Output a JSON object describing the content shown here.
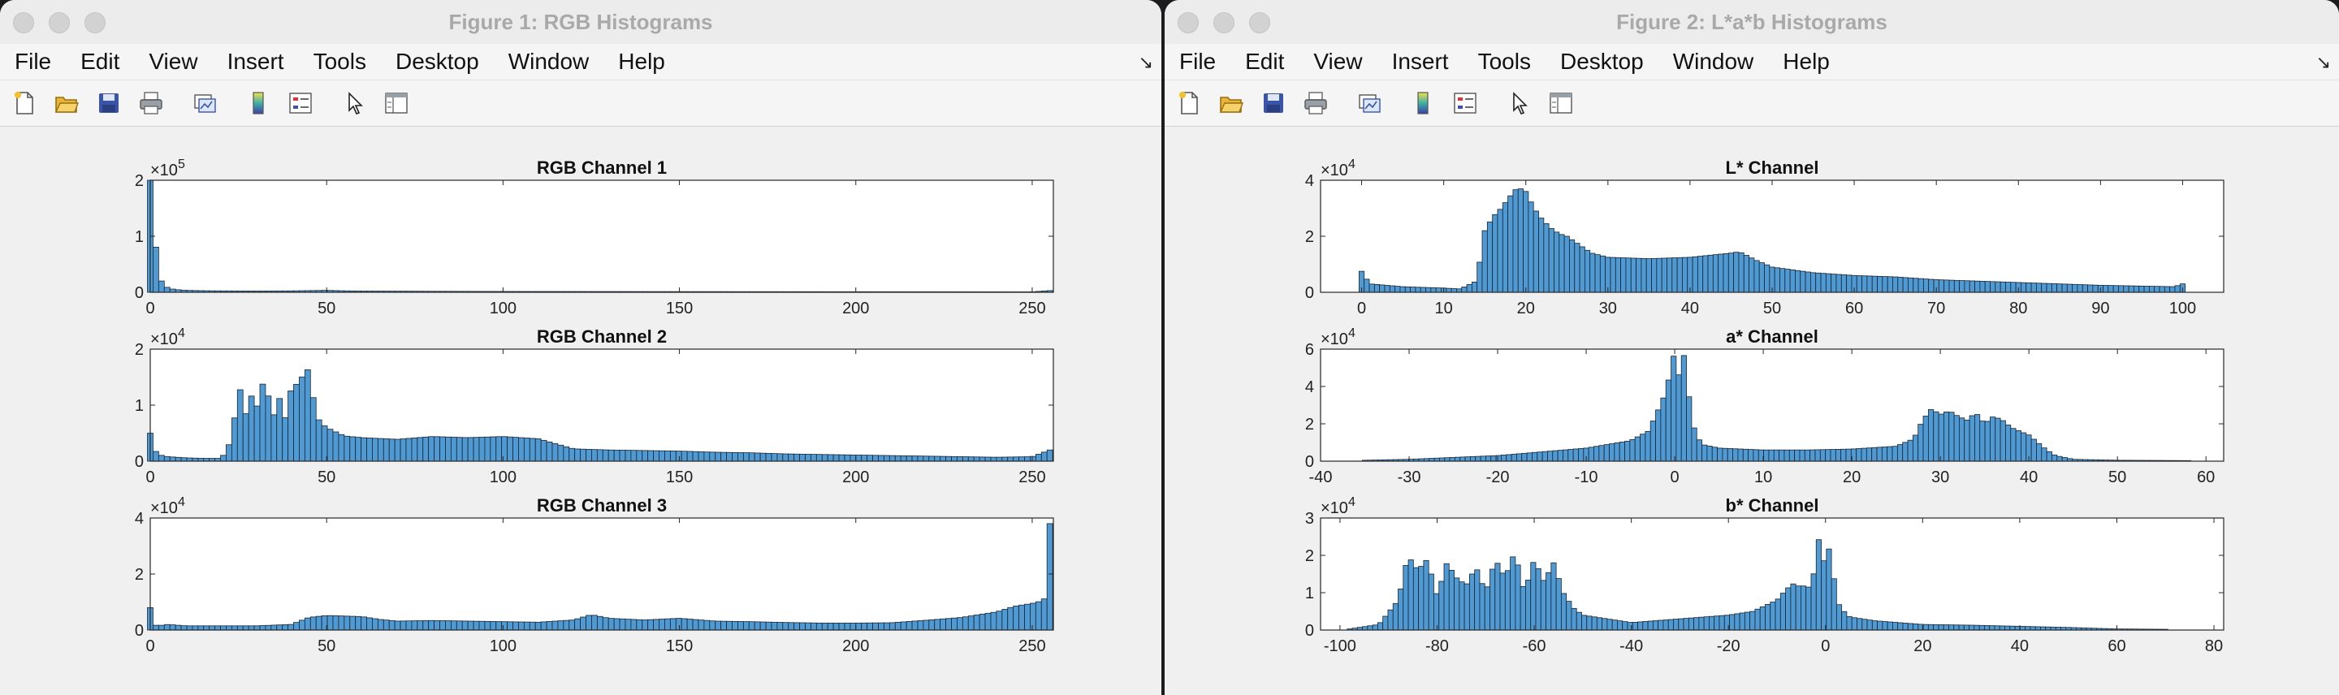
{
  "windows": [
    {
      "title": "Figure 1: RGB Histograms",
      "menu": [
        "File",
        "Edit",
        "View",
        "Insert",
        "Tools",
        "Desktop",
        "Window",
        "Help"
      ],
      "toolbar": [
        "new-figure-icon",
        "open-file-icon",
        "save-icon",
        "print-icon",
        "link-plot-icon",
        "colorbar-icon",
        "legend-icon",
        "pointer-icon",
        "property-inspector-icon"
      ],
      "chart_data": [
        {
          "type": "bar",
          "title": "RGB Channel 1",
          "xlim": [
            0,
            256
          ],
          "xticks": [
            0,
            50,
            100,
            150,
            200,
            250
          ],
          "ylim": [
            0,
            200000
          ],
          "yticks": [
            0,
            1,
            2
          ],
          "exponent": "5",
          "x": [
            0,
            1,
            2,
            3,
            4,
            5,
            6,
            8,
            10,
            15,
            20,
            30,
            40,
            45,
            50,
            55,
            60,
            80,
            100,
            150,
            200,
            250,
            255
          ],
          "y": [
            200000,
            118000,
            55000,
            22000,
            12000,
            8000,
            6000,
            4500,
            3500,
            2800,
            2500,
            2200,
            2500,
            3000,
            3500,
            2600,
            2200,
            1800,
            1500,
            1200,
            1000,
            800,
            3000
          ],
          "color": "#4f9ad2"
        },
        {
          "type": "bar",
          "title": "RGB Channel 2",
          "xlim": [
            0,
            256
          ],
          "xticks": [
            0,
            50,
            100,
            150,
            200,
            250
          ],
          "ylim": [
            0,
            20000
          ],
          "yticks": [
            0,
            1,
            2
          ],
          "exponent": "4",
          "x": [
            0,
            1,
            2,
            5,
            10,
            15,
            20,
            22,
            24,
            25,
            26,
            27,
            28,
            30,
            31,
            32,
            33,
            34,
            35,
            36,
            37,
            38,
            40,
            42,
            44,
            45,
            46,
            47,
            48,
            50,
            55,
            60,
            70,
            80,
            90,
            100,
            110,
            120,
            130,
            140,
            150,
            160,
            170,
            180,
            190,
            200,
            210,
            220,
            230,
            240,
            250,
            255
          ],
          "y": [
            5000,
            2500,
            1200,
            800,
            600,
            500,
            500,
            2000,
            8000,
            14500,
            11000,
            8000,
            13000,
            9000,
            12000,
            14000,
            10000,
            13500,
            8000,
            12500,
            10500,
            7000,
            13000,
            14000,
            16000,
            16500,
            12000,
            9000,
            7000,
            6000,
            4500,
            4200,
            3900,
            4400,
            4200,
            4400,
            4000,
            2200,
            2000,
            1900,
            1800,
            1600,
            1500,
            1300,
            1200,
            1100,
            1000,
            900,
            800,
            700,
            800,
            2000
          ],
          "color": "#4f9ad2"
        },
        {
          "type": "bar",
          "title": "RGB Channel 3",
          "xlim": [
            0,
            256
          ],
          "xticks": [
            0,
            50,
            100,
            150,
            200,
            250
          ],
          "ylim": [
            0,
            40000
          ],
          "yticks": [
            0,
            2,
            4
          ],
          "exponent": "4",
          "x": [
            0,
            1,
            2,
            5,
            10,
            20,
            30,
            40,
            45,
            50,
            55,
            60,
            65,
            70,
            80,
            90,
            100,
            110,
            120,
            125,
            130,
            140,
            150,
            160,
            170,
            180,
            190,
            200,
            210,
            220,
            230,
            240,
            245,
            250,
            253,
            254,
            255
          ],
          "y": [
            8000,
            2000,
            1500,
            2000,
            1500,
            1500,
            1500,
            2000,
            4500,
            5200,
            5000,
            4800,
            3800,
            3200,
            3400,
            3200,
            3000,
            2800,
            3600,
            5500,
            4200,
            3600,
            4200,
            3200,
            3000,
            2700,
            2500,
            2500,
            2600,
            3500,
            4500,
            6500,
            8500,
            9500,
            10500,
            12000,
            38000
          ],
          "color": "#4f9ad2"
        }
      ]
    },
    {
      "title": "Figure 2: L*a*b Histograms",
      "menu": [
        "File",
        "Edit",
        "View",
        "Insert",
        "Tools",
        "Desktop",
        "Window",
        "Help"
      ],
      "toolbar": [
        "new-figure-icon",
        "open-file-icon",
        "save-icon",
        "print-icon",
        "link-plot-icon",
        "colorbar-icon",
        "legend-icon",
        "pointer-icon",
        "property-inspector-icon"
      ],
      "chart_data": [
        {
          "type": "bar",
          "title": "L* Channel",
          "xlim": [
            -5,
            105
          ],
          "xticks": [
            0,
            10,
            20,
            30,
            40,
            50,
            60,
            70,
            80,
            90,
            100
          ],
          "ylim": [
            0,
            40000
          ],
          "yticks": [
            0,
            2,
            4
          ],
          "exponent": "4",
          "x": [
            0,
            1,
            5,
            10,
            12,
            14,
            15,
            16,
            17,
            18,
            19,
            20,
            21,
            22,
            23,
            24,
            25,
            26,
            27,
            28,
            30,
            35,
            40,
            45,
            46,
            47,
            48,
            50,
            55,
            60,
            65,
            70,
            80,
            90,
            99,
            100
          ],
          "y": [
            7500,
            3000,
            2000,
            1500,
            1200,
            4000,
            22000,
            27000,
            30000,
            34000,
            37500,
            36000,
            30000,
            26000,
            23000,
            21000,
            20000,
            18000,
            16000,
            14000,
            12500,
            12000,
            12500,
            14000,
            14500,
            13000,
            11500,
            9000,
            7000,
            6000,
            5500,
            4500,
            3500,
            2500,
            2000,
            3000
          ],
          "color": "#4f9ad2"
        },
        {
          "type": "bar",
          "title": "a* Channel",
          "xlim": [
            -40,
            62
          ],
          "xticks": [
            -40,
            -30,
            -20,
            -10,
            0,
            10,
            20,
            30,
            40,
            50,
            60
          ],
          "ylim": [
            0,
            60000
          ],
          "yticks": [
            0,
            2,
            4,
            6
          ],
          "exponent": "4",
          "x": [
            -35,
            -30,
            -20,
            -15,
            -10,
            -5,
            -3,
            -2,
            -1,
            0,
            0.5,
            1,
            2,
            3,
            5,
            10,
            15,
            20,
            25,
            27,
            28,
            29,
            30,
            31,
            32,
            33,
            34,
            35,
            36,
            37,
            38,
            39,
            40,
            41,
            42,
            43,
            45,
            50,
            58
          ],
          "y": [
            500,
            1000,
            3000,
            5000,
            7000,
            11000,
            16000,
            26000,
            37000,
            59000,
            45000,
            58000,
            20000,
            9000,
            7000,
            6000,
            6000,
            6500,
            8000,
            12000,
            22000,
            28000,
            25000,
            27000,
            24000,
            22000,
            26000,
            20000,
            24000,
            22000,
            18000,
            16000,
            14000,
            10000,
            6000,
            3000,
            1000,
            500,
            300
          ],
          "color": "#4f9ad2"
        },
        {
          "type": "bar",
          "title": "b* Channel",
          "xlim": [
            -104,
            82
          ],
          "xticks": [
            -100,
            -80,
            -60,
            -40,
            -20,
            0,
            20,
            40,
            60,
            80
          ],
          "ylim": [
            0,
            30000
          ],
          "yticks": [
            0,
            1,
            2,
            3
          ],
          "exponent": "4",
          "x": [
            -98,
            -92,
            -88,
            -86,
            -84,
            -82,
            -80,
            -78,
            -76,
            -74,
            -72,
            -70,
            -68,
            -66,
            -64,
            -62,
            -60,
            -58,
            -56,
            -54,
            -52,
            -50,
            -45,
            -40,
            -30,
            -20,
            -15,
            -10,
            -8,
            -6,
            -5,
            -4,
            -3,
            -2,
            -1,
            0,
            1,
            2,
            3,
            5,
            10,
            20,
            30,
            40,
            50,
            60,
            70
          ],
          "y": [
            300,
            1500,
            8000,
            20000,
            16000,
            19000,
            9000,
            18000,
            14000,
            12000,
            17000,
            10000,
            19000,
            14000,
            21000,
            10000,
            19000,
            13000,
            18000,
            10000,
            6000,
            4000,
            3000,
            2000,
            3000,
            4000,
            5000,
            8000,
            11000,
            13000,
            10000,
            14000,
            9000,
            20000,
            27000,
            14000,
            25000,
            10000,
            6000,
            3500,
            2500,
            1500,
            1300,
            1000,
            700,
            300,
            200
          ],
          "color": "#4f9ad2"
        }
      ]
    }
  ]
}
